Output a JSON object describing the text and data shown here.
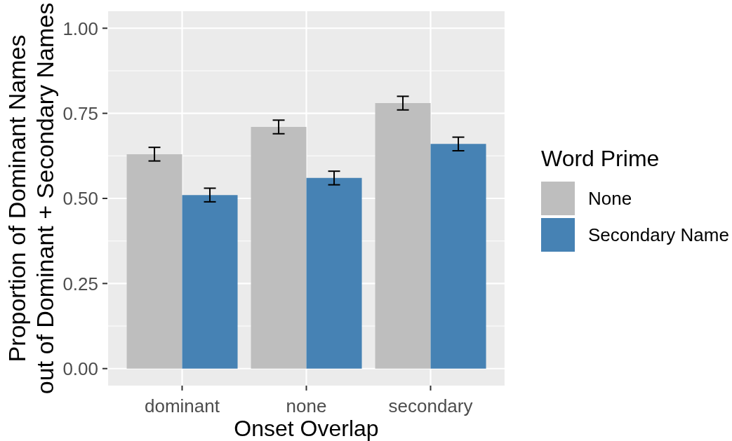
{
  "chart_data": {
    "type": "bar",
    "categories": [
      "dominant",
      "none",
      "secondary"
    ],
    "series": [
      {
        "name": "None",
        "color": "#bebebe",
        "values": [
          0.63,
          0.71,
          0.78
        ],
        "errors": [
          0.02,
          0.02,
          0.02
        ]
      },
      {
        "name": "Secondary Name",
        "color": "#4682b4",
        "values": [
          0.51,
          0.56,
          0.66
        ],
        "errors": [
          0.02,
          0.02,
          0.02
        ]
      }
    ],
    "xlabel": "Onset Overlap",
    "ylabel": "Proportion of Dominant Names\nout of Dominant + Secondary Names",
    "legend_title": "Word Prime",
    "legend": "right",
    "ylim": [
      -0.05,
      1.05
    ],
    "yticks": [
      {
        "value": 0,
        "label": "0.00"
      },
      {
        "value": 0.125,
        "label": null
      },
      {
        "value": 0.25,
        "label": "0.25"
      },
      {
        "value": 0.375,
        "label": null
      },
      {
        "value": 0.5,
        "label": "0.50"
      },
      {
        "value": 0.625,
        "label": null
      },
      {
        "value": 0.75,
        "label": "0.75"
      },
      {
        "value": 0.875,
        "label": null
      },
      {
        "value": 1,
        "label": "1.00"
      }
    ],
    "grid": true
  }
}
